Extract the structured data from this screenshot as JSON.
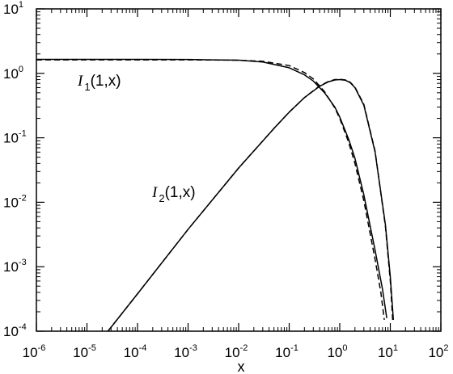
{
  "chart_data": {
    "type": "line",
    "title": "",
    "xlabel": "x",
    "ylabel": "",
    "x_scale": "log",
    "y_scale": "log",
    "xlim": [
      1e-06,
      100
    ],
    "ylim": [
      0.0001,
      10
    ],
    "grid": false,
    "x_ticks": [
      {
        "base": "10",
        "exp": "-6"
      },
      {
        "base": "10",
        "exp": "-5"
      },
      {
        "base": "10",
        "exp": "-4"
      },
      {
        "base": "10",
        "exp": "-3"
      },
      {
        "base": "10",
        "exp": "-2"
      },
      {
        "base": "10",
        "exp": "-1"
      },
      {
        "base": "10",
        "exp": "0"
      },
      {
        "base": "10",
        "exp": "1"
      },
      {
        "base": "10",
        "exp": "2"
      }
    ],
    "y_ticks": [
      {
        "base": "10",
        "exp": "-4"
      },
      {
        "base": "10",
        "exp": "-3"
      },
      {
        "base": "10",
        "exp": "-2"
      },
      {
        "base": "10",
        "exp": "-1"
      },
      {
        "base": "10",
        "exp": "0"
      },
      {
        "base": "10",
        "exp": "1"
      }
    ],
    "annotations": [
      {
        "main": "I",
        "sub": "1",
        "args": "(1,x)"
      },
      {
        "main": "I",
        "sub": "2",
        "args": "(1,x)"
      }
    ],
    "series": [
      {
        "style": "solid",
        "x": [
          1e-06,
          1e-05,
          0.0001,
          0.001,
          0.01,
          0.03,
          0.1,
          0.2,
          0.3,
          0.5,
          0.8,
          1.0,
          1.5,
          2.0,
          3.0,
          5.0,
          7.0,
          8.5
        ],
        "y": [
          1.65,
          1.65,
          1.65,
          1.64,
          1.6,
          1.5,
          1.22,
          0.95,
          0.76,
          0.5,
          0.3,
          0.21,
          0.095,
          0.048,
          0.013,
          0.0018,
          0.00045,
          0.00016
        ]
      },
      {
        "style": "dashed",
        "x": [
          1e-06,
          1e-05,
          0.0001,
          0.001,
          0.01,
          0.03,
          0.1,
          0.2,
          0.3,
          0.5,
          0.8,
          1.0,
          1.5,
          2.0,
          3.0,
          5.0,
          6.5,
          7.6
        ],
        "y": [
          1.62,
          1.62,
          1.62,
          1.62,
          1.6,
          1.54,
          1.32,
          1.03,
          0.82,
          0.52,
          0.29,
          0.2,
          0.085,
          0.04,
          0.0105,
          0.0013,
          0.0004,
          0.00015
        ]
      },
      {
        "style": "solid",
        "x": [
          2.6e-05,
          0.0001,
          0.001,
          0.01,
          0.05,
          0.1,
          0.2,
          0.4,
          0.6,
          0.8,
          1.0,
          1.3,
          1.6,
          2.0,
          3.0,
          5.0,
          8.0,
          10.0,
          11.5
        ],
        "y": [
          0.0001,
          0.00038,
          0.0038,
          0.034,
          0.14,
          0.25,
          0.42,
          0.63,
          0.74,
          0.79,
          0.8,
          0.78,
          0.72,
          0.6,
          0.32,
          0.06,
          0.0045,
          0.0007,
          0.00015
        ]
      },
      {
        "style": "dashed",
        "x": [
          2.6e-05,
          0.0001,
          0.001,
          0.01,
          0.05,
          0.1,
          0.2,
          0.4,
          0.6,
          0.8,
          1.0,
          1.3,
          1.6,
          2.0,
          3.0,
          5.0,
          8.0,
          10.0,
          11.2
        ],
        "y": [
          0.0001,
          0.00038,
          0.0038,
          0.034,
          0.14,
          0.25,
          0.42,
          0.64,
          0.75,
          0.8,
          0.81,
          0.79,
          0.73,
          0.61,
          0.33,
          0.062,
          0.0042,
          0.0006,
          0.00014
        ]
      }
    ]
  }
}
